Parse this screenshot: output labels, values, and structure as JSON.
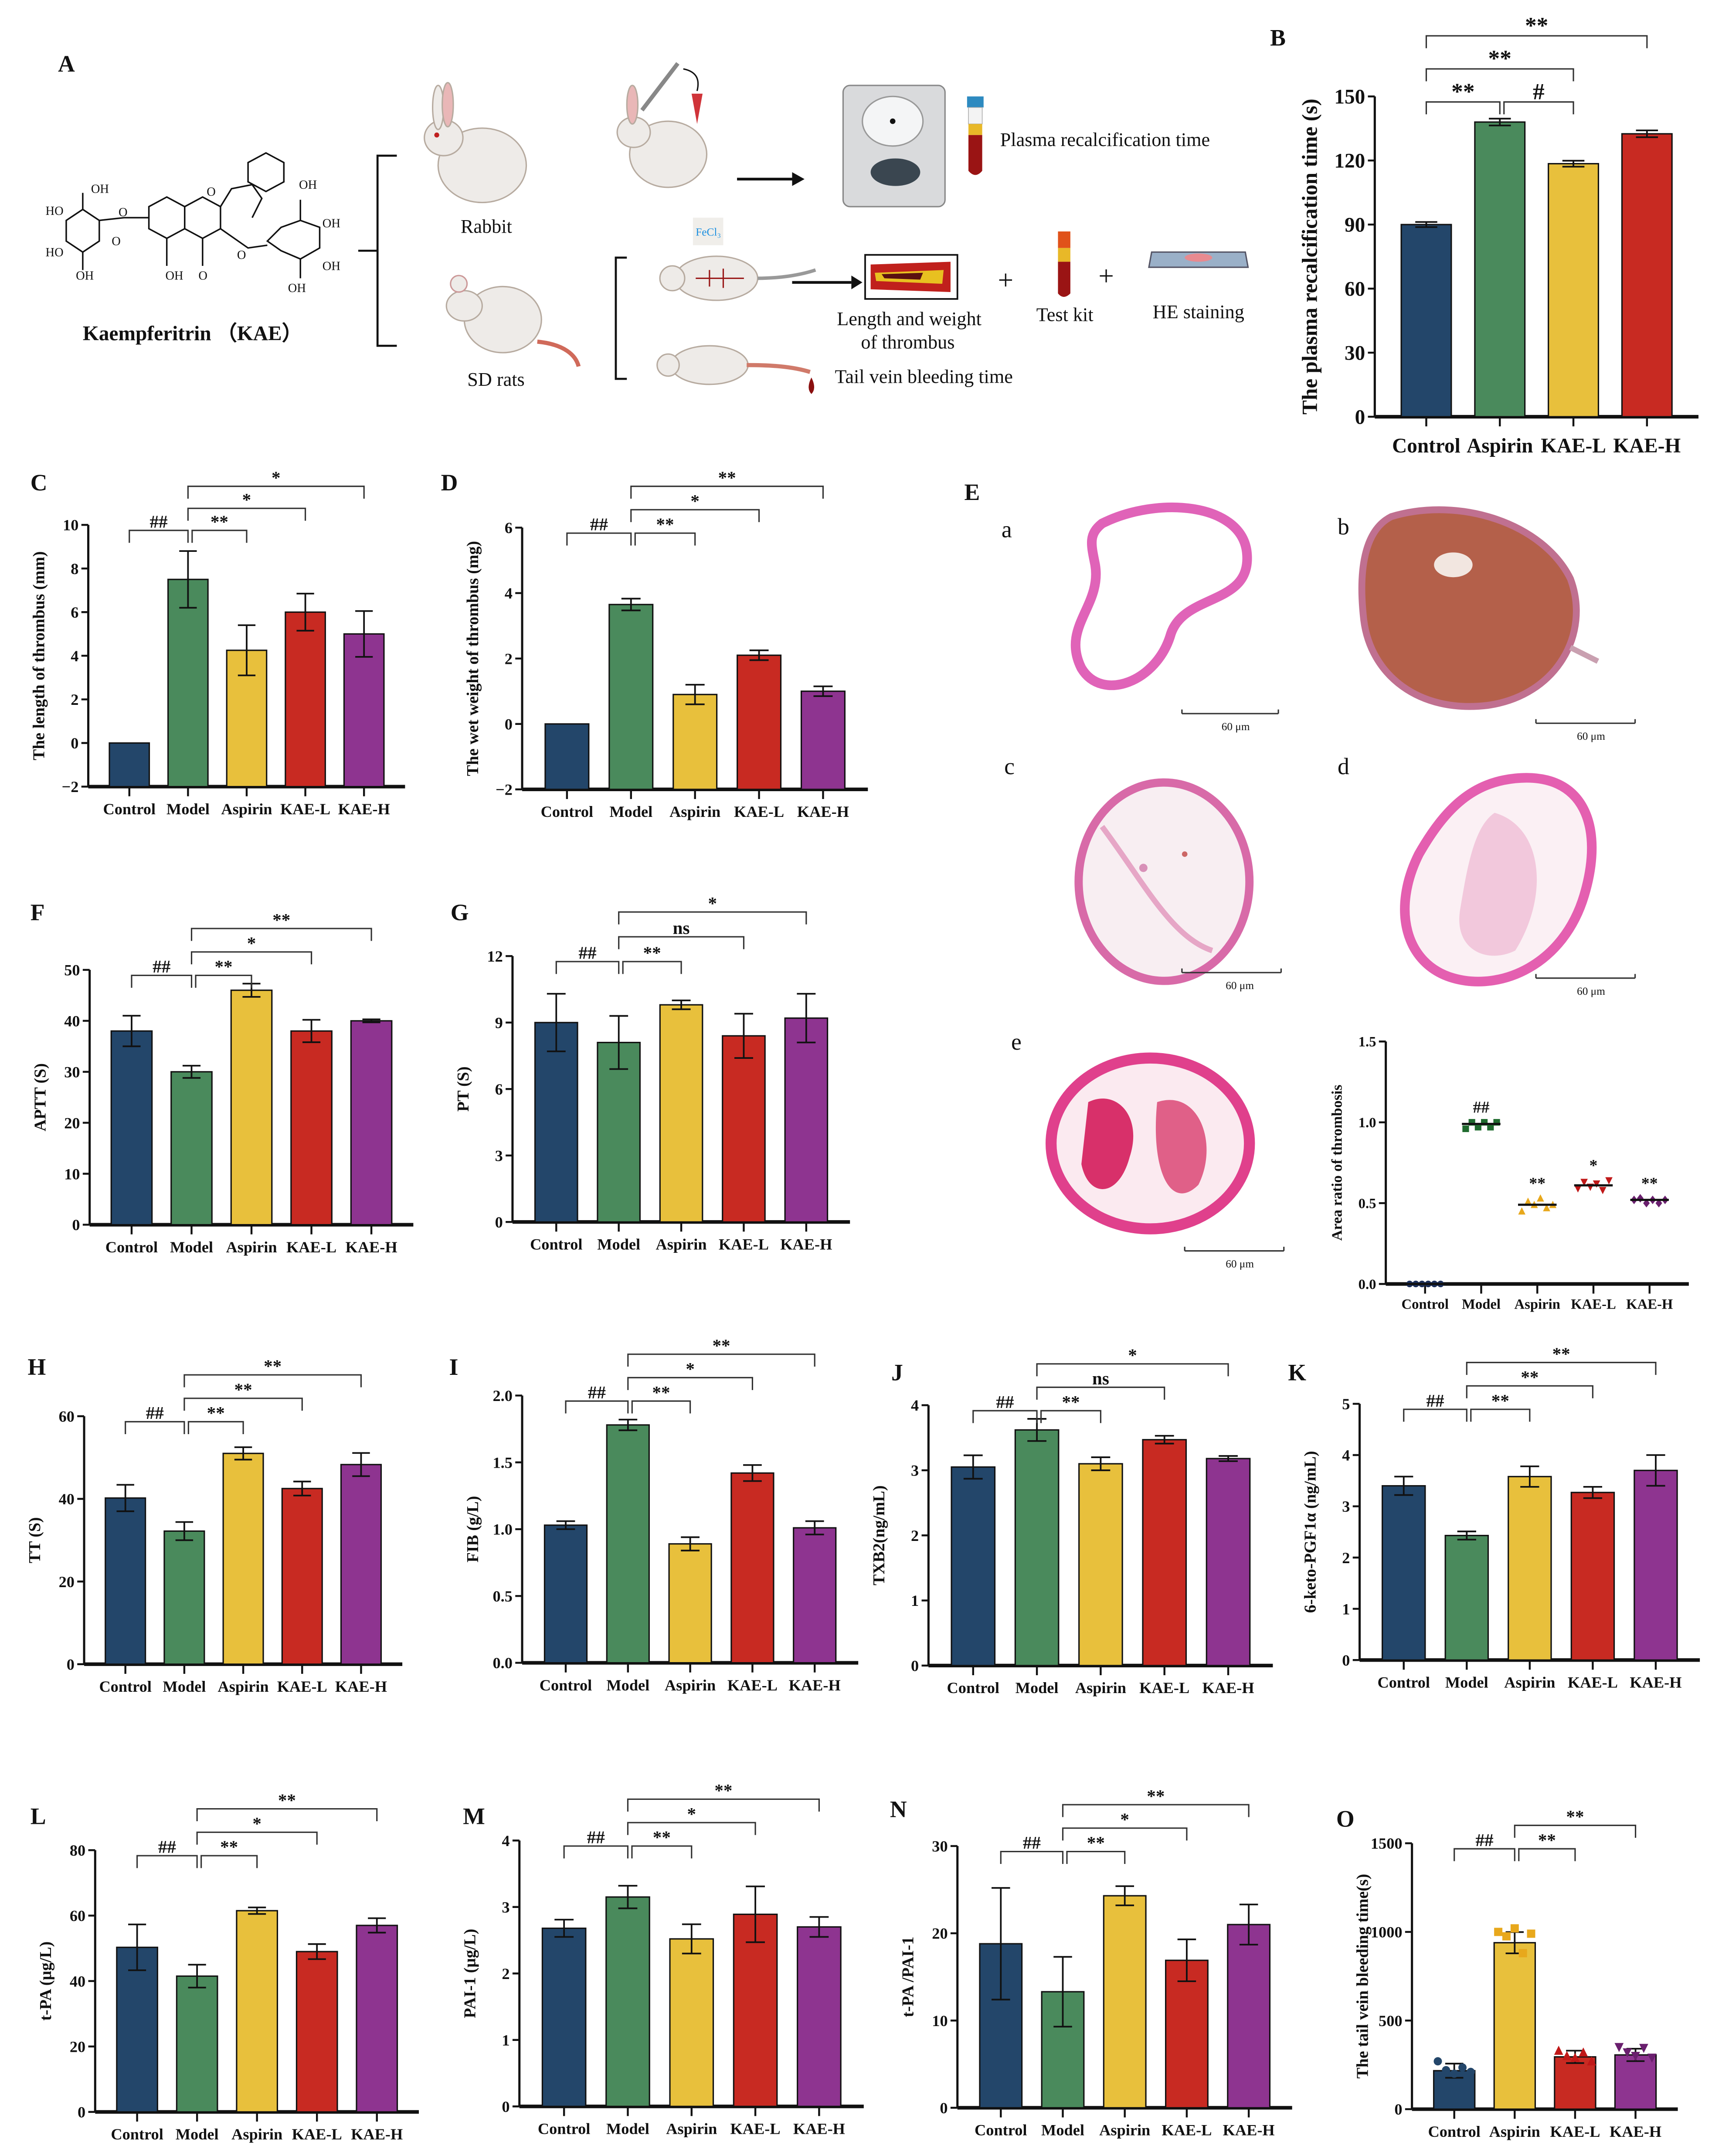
{
  "panel_labels": {
    "A": "A",
    "B": "B",
    "C": "C",
    "D": "D",
    "E": "E",
    "F": "F",
    "G": "G",
    "H": "H",
    "I": "I",
    "J": "J",
    "K": "K",
    "L": "L",
    "M": "M",
    "N": "N",
    "O": "O"
  },
  "diagram": {
    "compound_name": "Kaempferitrin （KAE）",
    "atoms": [
      "OH",
      "HO",
      "HO",
      "O",
      "O",
      "O",
      "OH",
      "O",
      "OH",
      "OH",
      "OH",
      "OH",
      "O",
      "OH"
    ],
    "rabbit_label": "Rabbit",
    "rat_label": "SD rats",
    "plasma_label": "Plasma recalcification time",
    "fecl3_label": "FeCl₃",
    "thrombus_label_1": "Length and weight",
    "thrombus_label_2": "of thrombus",
    "plus": "+",
    "test_kit_label": "Test kit",
    "he_label": "HE staining",
    "tail_label": "Tail vein bleeding time"
  },
  "histology": {
    "sublabels": [
      "a",
      "b",
      "c",
      "d",
      "e"
    ],
    "scale_bar": "60 μm"
  },
  "colors": {
    "Control": "#23466a",
    "Model": "#4a8a5c",
    "Aspirin": "#e8c03c",
    "KAE-L": "#c82a22",
    "KAE-H": "#8e3490"
  },
  "chart_data": [
    {
      "panel": "B",
      "type": "bar",
      "ylabel": "The plasma recalcification time (s)",
      "categories": [
        "Control",
        "Aspirin",
        "KAE-L",
        "KAE-H"
      ],
      "colors": [
        "#23466a",
        "#4a8a5c",
        "#e8c03c",
        "#c82a22"
      ],
      "values": [
        90,
        138,
        118.5,
        132.5
      ],
      "errors": [
        1.2,
        1.6,
        1.4,
        1.6
      ],
      "ylim": [
        0,
        150
      ],
      "yticks": [
        0,
        30,
        60,
        90,
        120,
        150
      ],
      "ytick_labels": [
        "0",
        "30",
        "60",
        "90",
        "120",
        "150"
      ],
      "comparisons": [
        {
          "from": 0,
          "to": 1,
          "label": "**"
        },
        {
          "from": 1,
          "to": 2,
          "label": "#"
        },
        {
          "from": 0,
          "to": 2,
          "label": "**"
        },
        {
          "from": 0,
          "to": 3,
          "label": "**"
        }
      ]
    },
    {
      "panel": "C",
      "type": "bar",
      "ylabel": "The length of thrombus (mm)",
      "categories": [
        "Control",
        "Model",
        "Aspirin",
        "KAE-L",
        "KAE-H"
      ],
      "colors": [
        "#23466a",
        "#4a8a5c",
        "#e8c03c",
        "#c82a22",
        "#8e3490"
      ],
      "values": [
        0,
        7.5,
        4.25,
        6.0,
        5.0
      ],
      "errors": [
        0,
        1.3,
        1.15,
        0.85,
        1.05
      ],
      "ylim": [
        -2,
        10
      ],
      "yticks": [
        -2,
        0,
        2,
        4,
        6,
        8,
        10
      ],
      "ytick_labels": [
        "−2",
        "0",
        "2",
        "4",
        "6",
        "8",
        "10"
      ],
      "comparisons": [
        {
          "from": 0,
          "to": 1,
          "label": "##"
        },
        {
          "from": 1,
          "to": 2,
          "label": "**"
        },
        {
          "from": 1,
          "to": 3,
          "label": "*"
        },
        {
          "from": 1,
          "to": 4,
          "label": "*"
        }
      ]
    },
    {
      "panel": "D",
      "type": "bar",
      "ylabel": "The wet weight of thrombus (mg)",
      "categories": [
        "Control",
        "Model",
        "Aspirin",
        "KAE-L",
        "KAE-H"
      ],
      "colors": [
        "#23466a",
        "#4a8a5c",
        "#e8c03c",
        "#c82a22",
        "#8e3490"
      ],
      "values": [
        0,
        3.65,
        0.9,
        2.1,
        1.0
      ],
      "errors": [
        0,
        0.18,
        0.3,
        0.15,
        0.15
      ],
      "ylim": [
        -2,
        6
      ],
      "yticks": [
        -2,
        0,
        2,
        4,
        6
      ],
      "ytick_labels": [
        "−2",
        "0",
        "2",
        "4",
        "6"
      ],
      "comparisons": [
        {
          "from": 0,
          "to": 1,
          "label": "##"
        },
        {
          "from": 1,
          "to": 2,
          "label": "**"
        },
        {
          "from": 1,
          "to": 3,
          "label": "*"
        },
        {
          "from": 1,
          "to": 4,
          "label": "**"
        }
      ]
    },
    {
      "panel": "f",
      "type": "scatter",
      "ylabel": "Area ratio of thrombosis",
      "categories": [
        "Control",
        "Model",
        "Aspirin",
        "KAE-L",
        "KAE-H"
      ],
      "colors": [
        "#1c2f5a",
        "#1f6b2e",
        "#e8a81c",
        "#c01818",
        "#6a1f6e"
      ],
      "markers": [
        "circle",
        "square",
        "triangle-up",
        "triangle-down",
        "diamond"
      ],
      "points": [
        [
          0,
          0,
          0,
          0,
          0,
          0
        ],
        [
          0.96,
          1.0,
          0.97,
          1.0,
          0.97,
          1.0
        ],
        [
          0.45,
          0.51,
          0.49,
          0.53,
          0.47,
          0.49
        ],
        [
          0.59,
          0.63,
          0.6,
          0.62,
          0.58,
          0.64
        ],
        [
          0.52,
          0.53,
          0.5,
          0.52,
          0.5,
          0.52
        ]
      ],
      "means": [
        0,
        0.99,
        0.49,
        0.61,
        0.52
      ],
      "labels": [
        "",
        "##",
        "**",
        "*",
        "**"
      ],
      "ylim": [
        0,
        1.5
      ],
      "yticks": [
        0,
        0.5,
        1.0,
        1.5
      ],
      "ytick_labels": [
        "0.0",
        "0.5",
        "1.0",
        "1.5"
      ]
    },
    {
      "panel": "F",
      "type": "bar",
      "ylabel": "APTT (S)",
      "categories": [
        "Control",
        "Model",
        "Aspirin",
        "KAE-L",
        "KAE-H"
      ],
      "colors": [
        "#23466a",
        "#4a8a5c",
        "#e8c03c",
        "#c82a22",
        "#8e3490"
      ],
      "values": [
        38,
        30,
        46,
        38,
        40
      ],
      "errors": [
        3,
        1.2,
        1.3,
        2.2,
        0.3
      ],
      "ylim": [
        0,
        50
      ],
      "yticks": [
        0,
        10,
        20,
        30,
        40,
        50
      ],
      "ytick_labels": [
        "0",
        "10",
        "20",
        "30",
        "40",
        "50"
      ],
      "comparisons": [
        {
          "from": 0,
          "to": 1,
          "label": "##"
        },
        {
          "from": 1,
          "to": 2,
          "label": "**"
        },
        {
          "from": 1,
          "to": 3,
          "label": "*"
        },
        {
          "from": 1,
          "to": 4,
          "label": "**"
        }
      ]
    },
    {
      "panel": "G",
      "type": "bar",
      "ylabel": "PT (S)",
      "categories": [
        "Control",
        "Model",
        "Aspirin",
        "KAE-L",
        "KAE-H"
      ],
      "colors": [
        "#23466a",
        "#4a8a5c",
        "#e8c03c",
        "#c82a22",
        "#8e3490"
      ],
      "values": [
        9.0,
        8.1,
        9.8,
        8.4,
        9.2
      ],
      "errors": [
        1.3,
        1.2,
        0.2,
        1.0,
        1.1
      ],
      "ylim": [
        0,
        12
      ],
      "yticks": [
        0,
        3,
        6,
        9,
        12
      ],
      "ytick_labels": [
        "0",
        "3",
        "6",
        "9",
        "12"
      ],
      "comparisons": [
        {
          "from": 0,
          "to": 1,
          "label": "##"
        },
        {
          "from": 1,
          "to": 2,
          "label": "**"
        },
        {
          "from": 1,
          "to": 3,
          "label": "ns"
        },
        {
          "from": 1,
          "to": 4,
          "label": "*"
        }
      ]
    },
    {
      "panel": "H",
      "type": "bar",
      "ylabel": "TT (S)",
      "categories": [
        "Control",
        "Model",
        "Aspirin",
        "KAE-L",
        "KAE-H"
      ],
      "colors": [
        "#23466a",
        "#4a8a5c",
        "#e8c03c",
        "#c82a22",
        "#8e3490"
      ],
      "values": [
        40.2,
        32.2,
        51,
        42.5,
        48.3
      ],
      "errors": [
        3.2,
        2.2,
        1.5,
        1.7,
        2.8
      ],
      "ylim": [
        0,
        60
      ],
      "yticks": [
        0,
        20,
        40,
        60
      ],
      "ytick_labels": [
        "0",
        "20",
        "40",
        "60"
      ],
      "comparisons": [
        {
          "from": 0,
          "to": 1,
          "label": "##"
        },
        {
          "from": 1,
          "to": 2,
          "label": "**"
        },
        {
          "from": 1,
          "to": 3,
          "label": "**"
        },
        {
          "from": 1,
          "to": 4,
          "label": "**"
        }
      ]
    },
    {
      "panel": "I",
      "type": "bar",
      "ylabel": "FIB (g/L)",
      "categories": [
        "Control",
        "Model",
        "Aspirin",
        "KAE-L",
        "KAE-H"
      ],
      "colors": [
        "#23466a",
        "#4a8a5c",
        "#e8c03c",
        "#c82a22",
        "#8e3490"
      ],
      "values": [
        1.03,
        1.78,
        0.89,
        1.42,
        1.01
      ],
      "errors": [
        0.03,
        0.04,
        0.05,
        0.06,
        0.05
      ],
      "ylim": [
        0,
        2
      ],
      "yticks": [
        0,
        0.5,
        1.0,
        1.5,
        2.0
      ],
      "ytick_labels": [
        "0.0",
        "0.5",
        "1.0",
        "1.5",
        "2.0"
      ],
      "comparisons": [
        {
          "from": 0,
          "to": 1,
          "label": "##"
        },
        {
          "from": 1,
          "to": 2,
          "label": "**"
        },
        {
          "from": 1,
          "to": 3,
          "label": "*"
        },
        {
          "from": 1,
          "to": 4,
          "label": "**"
        }
      ]
    },
    {
      "panel": "J",
      "type": "bar",
      "ylabel": "TXB2(ng/mL)",
      "categories": [
        "Control",
        "Model",
        "Aspirin",
        "KAE-L",
        "KAE-H"
      ],
      "colors": [
        "#23466a",
        "#4a8a5c",
        "#e8c03c",
        "#c82a22",
        "#8e3490"
      ],
      "values": [
        3.05,
        3.62,
        3.1,
        3.47,
        3.18
      ],
      "errors": [
        0.18,
        0.17,
        0.1,
        0.06,
        0.04
      ],
      "ylim": [
        0,
        4
      ],
      "yticks": [
        0,
        1,
        2,
        3,
        4
      ],
      "ytick_labels": [
        "0",
        "1",
        "2",
        "3",
        "4"
      ],
      "comparisons": [
        {
          "from": 0,
          "to": 1,
          "label": "##"
        },
        {
          "from": 1,
          "to": 2,
          "label": "**"
        },
        {
          "from": 1,
          "to": 3,
          "label": "ns"
        },
        {
          "from": 1,
          "to": 4,
          "label": "*"
        }
      ]
    },
    {
      "panel": "K",
      "type": "bar",
      "ylabel": "6-keto-PGF1α (ng/mL)",
      "categories": [
        "Control",
        "Model",
        "Aspirin",
        "KAE-L",
        "KAE-H"
      ],
      "colors": [
        "#23466a",
        "#4a8a5c",
        "#e8c03c",
        "#c82a22",
        "#8e3490"
      ],
      "values": [
        3.4,
        2.43,
        3.58,
        3.27,
        3.7
      ],
      "errors": [
        0.18,
        0.08,
        0.2,
        0.11,
        0.3
      ],
      "ylim": [
        0,
        5
      ],
      "yticks": [
        0,
        1,
        2,
        3,
        4,
        5
      ],
      "ytick_labels": [
        "0",
        "1",
        "2",
        "3",
        "4",
        "5"
      ],
      "comparisons": [
        {
          "from": 0,
          "to": 1,
          "label": "##"
        },
        {
          "from": 1,
          "to": 2,
          "label": "**"
        },
        {
          "from": 1,
          "to": 3,
          "label": "**"
        },
        {
          "from": 1,
          "to": 4,
          "label": "**"
        }
      ]
    },
    {
      "panel": "L",
      "type": "bar",
      "ylabel": "t-PA (μg/L)",
      "categories": [
        "Control",
        "Model",
        "Aspirin",
        "KAE-L",
        "KAE-H"
      ],
      "colors": [
        "#23466a",
        "#4a8a5c",
        "#e8c03c",
        "#c82a22",
        "#8e3490"
      ],
      "values": [
        50.3,
        41.5,
        61.5,
        49,
        57
      ],
      "errors": [
        7,
        3.5,
        1,
        2.3,
        2.2
      ],
      "ylim": [
        0,
        80
      ],
      "yticks": [
        0,
        20,
        40,
        60,
        80
      ],
      "ytick_labels": [
        "0",
        "20",
        "40",
        "60",
        "80"
      ],
      "comparisons": [
        {
          "from": 0,
          "to": 1,
          "label": "##"
        },
        {
          "from": 1,
          "to": 2,
          "label": "**"
        },
        {
          "from": 1,
          "to": 3,
          "label": "*"
        },
        {
          "from": 1,
          "to": 4,
          "label": "**"
        }
      ]
    },
    {
      "panel": "M",
      "type": "bar",
      "ylabel": "PAI-1 (μg/L)",
      "categories": [
        "Control",
        "Model",
        "Aspirin",
        "KAE-L",
        "KAE-H"
      ],
      "colors": [
        "#23466a",
        "#4a8a5c",
        "#e8c03c",
        "#c82a22",
        "#8e3490"
      ],
      "values": [
        2.68,
        3.15,
        2.52,
        2.89,
        2.7
      ],
      "errors": [
        0.13,
        0.17,
        0.22,
        0.42,
        0.15
      ],
      "ylim": [
        0,
        4
      ],
      "yticks": [
        0,
        1,
        2,
        3,
        4
      ],
      "ytick_labels": [
        "0",
        "1",
        "2",
        "3",
        "4"
      ],
      "comparisons": [
        {
          "from": 0,
          "to": 1,
          "label": "##"
        },
        {
          "from": 1,
          "to": 2,
          "label": "**"
        },
        {
          "from": 1,
          "to": 3,
          "label": "*"
        },
        {
          "from": 1,
          "to": 4,
          "label": "**"
        }
      ]
    },
    {
      "panel": "N",
      "type": "bar",
      "ylabel": "t-PA /PAI-1",
      "categories": [
        "Control",
        "Model",
        "Aspirin",
        "KAE-L",
        "KAE-H"
      ],
      "colors": [
        "#23466a",
        "#4a8a5c",
        "#e8c03c",
        "#c82a22",
        "#8e3490"
      ],
      "values": [
        18.8,
        13.3,
        24.3,
        16.9,
        21.0
      ],
      "errors": [
        6.4,
        4.0,
        1.1,
        2.4,
        2.3
      ],
      "ylim": [
        0,
        30
      ],
      "yticks": [
        0,
        10,
        20,
        30
      ],
      "ytick_labels": [
        "0",
        "10",
        "20",
        "30"
      ],
      "comparisons": [
        {
          "from": 0,
          "to": 1,
          "label": "##"
        },
        {
          "from": 1,
          "to": 2,
          "label": "**"
        },
        {
          "from": 1,
          "to": 3,
          "label": "*"
        },
        {
          "from": 1,
          "to": 4,
          "label": "**"
        }
      ]
    },
    {
      "panel": "O",
      "type": "bar",
      "ylabel": "The tail vein bleeding time(s)",
      "categories": [
        "Control",
        "Aspirin",
        "KAE-L",
        "KAE-H"
      ],
      "colors": [
        "#23466a",
        "#e8c03c",
        "#c82a22",
        "#8e3490"
      ],
      "values": [
        217,
        939,
        295,
        306
      ],
      "errors": [
        40,
        60,
        35,
        35
      ],
      "points": [
        [
          270,
          220,
          200,
          235,
          210
        ],
        [
          1000,
          975,
          1020,
          880,
          990
        ],
        [
          330,
          300,
          290,
          320,
          270
        ],
        [
          350,
          320,
          300,
          345,
          290
        ]
      ],
      "point_colors": [
        "#23466a",
        "#e8a81c",
        "#c01818",
        "#6a1f6e"
      ],
      "markers": [
        "circle",
        "square",
        "triangle-up",
        "triangle-down"
      ],
      "ylim": [
        0,
        1500
      ],
      "yticks": [
        0,
        500,
        1000,
        1500
      ],
      "ytick_labels": [
        "0",
        "500",
        "1000",
        "1500"
      ],
      "comparisons": [
        {
          "from": 0,
          "to": 1,
          "label": "##"
        },
        {
          "from": 1,
          "to": 2,
          "label": "**"
        },
        {
          "from": 1,
          "to": 3,
          "label": "**"
        }
      ]
    }
  ]
}
